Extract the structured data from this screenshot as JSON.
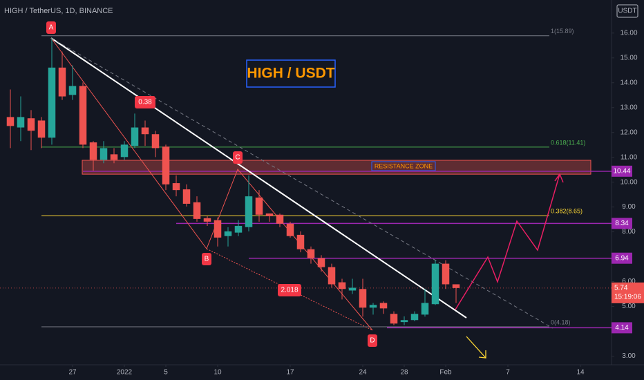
{
  "header": "HIGH / TetherUS, 1D, BINANCE",
  "chart_data": {
    "type": "candlestick",
    "title": "HIGH / USDT",
    "currency": "USDT",
    "up_color": "#26a69a",
    "down_color": "#ef5350",
    "x": [
      "2021-12-21",
      "2021-12-22",
      "2021-12-23",
      "2021-12-24",
      "2021-12-25",
      "2021-12-26",
      "2021-12-27",
      "2021-12-28",
      "2021-12-29",
      "2021-12-30",
      "2021-12-31",
      "2022-01-01",
      "2022-01-02",
      "2022-01-03",
      "2022-01-04",
      "2022-01-05",
      "2022-01-06",
      "2022-01-07",
      "2022-01-08",
      "2022-01-09",
      "2022-01-10",
      "2022-01-11",
      "2022-01-12",
      "2022-01-13",
      "2022-01-14",
      "2022-01-15",
      "2022-01-16",
      "2022-01-17",
      "2022-01-18",
      "2022-01-19",
      "2022-01-20",
      "2022-01-21",
      "2022-01-22",
      "2022-01-23",
      "2022-01-24",
      "2022-01-25",
      "2022-01-26",
      "2022-01-27",
      "2022-01-28",
      "2022-01-29",
      "2022-01-30",
      "2022-01-31",
      "2022-02-01",
      "2022-02-02"
    ],
    "open": [
      12.62,
      12.2,
      12.57,
      12.48,
      11.79,
      14.61,
      13.51,
      13.87,
      11.6,
      10.9,
      11.12,
      11.01,
      11.46,
      12.2,
      11.93,
      11.43,
      9.96,
      9.71,
      9.19,
      8.55,
      8.47,
      7.83,
      7.97,
      8.19,
      9.38,
      8.74,
      8.69,
      8.33,
      7.88,
      7.3,
      6.94,
      6.58,
      5.97,
      5.64,
      5.7,
      4.95,
      5.14,
      4.7,
      4.37,
      4.45,
      4.67,
      5.09,
      6.72,
      5.89
    ],
    "high": [
      13.73,
      13.45,
      12.9,
      12.62,
      15.81,
      15.25,
      14.7,
      14.01,
      11.65,
      11.65,
      11.37,
      11.65,
      12.76,
      12.48,
      12.07,
      11.51,
      10.27,
      9.91,
      9.43,
      8.63,
      8.58,
      8.19,
      8.47,
      10.27,
      9.68,
      8.74,
      8.74,
      8.41,
      8.02,
      7.41,
      7.06,
      6.72,
      6.11,
      6.11,
      6.11,
      5.14,
      5.2,
      4.8,
      4.6,
      4.8,
      5.7,
      6.86,
      6.86,
      5.89
    ],
    "low": [
      11.37,
      11.65,
      11.29,
      11.37,
      11.51,
      13.31,
      13.31,
      11.37,
      10.46,
      10.76,
      10.76,
      10.9,
      11.37,
      11.46,
      11.01,
      9.68,
      9.43,
      9.02,
      8.41,
      8.24,
      7.41,
      7.41,
      7.83,
      8.02,
      8.41,
      8.41,
      8.19,
      7.77,
      7.18,
      6.72,
      6.4,
      5.75,
      5.28,
      5.5,
      4.59,
      4.67,
      4.7,
      4.25,
      4.25,
      4.4,
      4.59,
      5.06,
      5.7,
      5.14
    ],
    "close": [
      12.26,
      12.62,
      12.07,
      11.79,
      14.61,
      13.45,
      13.87,
      11.51,
      10.9,
      11.37,
      10.9,
      11.51,
      12.2,
      11.93,
      11.37,
      9.91,
      9.68,
      9.13,
      8.52,
      8.41,
      7.77,
      8.02,
      8.24,
      9.43,
      8.69,
      8.63,
      8.33,
      7.83,
      7.3,
      6.94,
      6.58,
      5.89,
      5.7,
      5.75,
      4.95,
      5.06,
      4.92,
      4.31,
      4.45,
      4.7,
      5.14,
      6.72,
      5.89,
      5.74
    ],
    "ylim": [
      2.65,
      17.33
    ],
    "yticks": [
      {
        "value": 16,
        "label": "16.00"
      },
      {
        "value": 15,
        "label": "15.00"
      },
      {
        "value": 14,
        "label": "14.00"
      },
      {
        "value": 13,
        "label": "13.00"
      },
      {
        "value": 12,
        "label": "12.00"
      },
      {
        "value": 11,
        "label": "11.00"
      },
      {
        "value": 10,
        "label": "10.00"
      },
      {
        "value": 9,
        "label": "9.00"
      },
      {
        "value": 8,
        "label": "8.00"
      },
      {
        "value": 6,
        "label": "6.00"
      },
      {
        "value": 5,
        "label": "5.00"
      },
      {
        "value": 3,
        "label": "3.00"
      }
    ],
    "xlim": [
      "2021-12-20",
      "2022-02-17"
    ],
    "xticks": [
      {
        "value": "2021-12-27",
        "label": "27"
      },
      {
        "value": "2022-01-01",
        "label": "2022"
      },
      {
        "value": "2022-01-05",
        "label": "5"
      },
      {
        "value": "2022-01-10",
        "label": "10"
      },
      {
        "value": "2022-01-17",
        "label": "17"
      },
      {
        "value": "2022-01-24",
        "label": "24"
      },
      {
        "value": "2022-01-28",
        "label": "28"
      },
      {
        "value": "2022-02-01",
        "label": "Feb"
      },
      {
        "value": "2022-02-07",
        "label": "7"
      },
      {
        "value": "2022-02-14",
        "label": "14"
      }
    ],
    "last_price": {
      "value": 5.74,
      "label": "5.74",
      "countdown": "15:19:06",
      "color": "#ef5350"
    },
    "levels_color": "#9c27b0",
    "levels": [
      {
        "value": 10.44,
        "label": "10.44"
      },
      {
        "value": 8.34,
        "label": "8.34"
      },
      {
        "value": 6.94,
        "label": "6.94"
      },
      {
        "value": 4.14,
        "label": "4.14"
      }
    ],
    "fib_levels": [
      {
        "value": 15.89,
        "label": "1(15.89)",
        "color": "#787b86"
      },
      {
        "value": 11.41,
        "label": "0.618(11.41)",
        "color": "#4caf50"
      },
      {
        "value": 8.65,
        "label": "0.382(8.65)",
        "color": "#fdd835"
      },
      {
        "value": 4.18,
        "label": "0(4.18)",
        "color": "#787b86"
      }
    ],
    "resistance_zone": {
      "label": "RESISTANCE ZONE",
      "low": 10.32,
      "high": 10.88
    },
    "wave_labels": [
      "A",
      "B",
      "C",
      "D"
    ],
    "ratio_labels": [
      "0.38",
      "2.018"
    ]
  }
}
